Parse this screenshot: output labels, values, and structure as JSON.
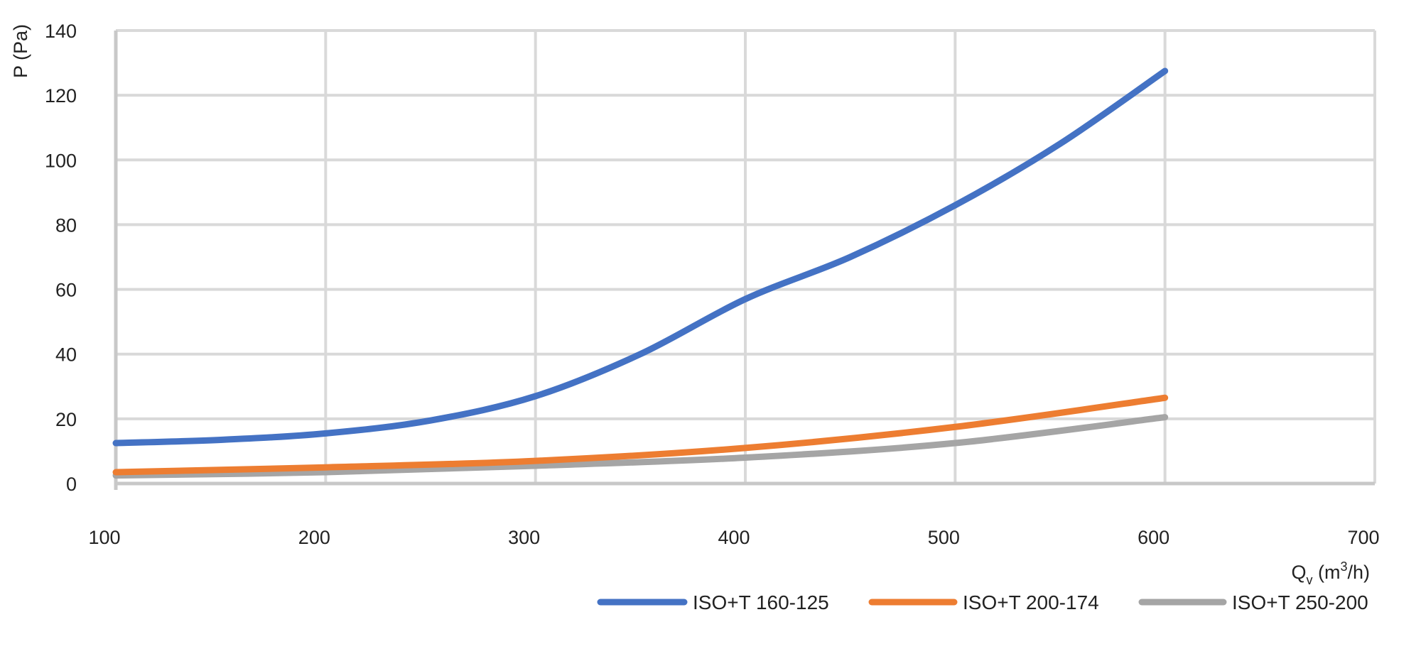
{
  "chart_data": {
    "type": "line",
    "title": "",
    "ylabel": "P (Pa)",
    "xlabel": {
      "base": "Q",
      "sub": "v",
      "pre": " (m",
      "sup": "3",
      "post": "/h)"
    },
    "xlim": [
      100,
      700
    ],
    "ylim": [
      0,
      140
    ],
    "x_ticks": [
      "100",
      "200",
      "300",
      "400",
      "500",
      "600",
      "700"
    ],
    "y_ticks": [
      "0",
      "20",
      "40",
      "60",
      "80",
      "100",
      "120",
      "140"
    ],
    "grid": true,
    "legend_position": "bottom-right",
    "series": [
      {
        "name": "ISO+T 160-125",
        "color": "#4472c4",
        "points": [
          [
            100,
            12.5
          ],
          [
            150,
            13.5
          ],
          [
            200,
            15.5
          ],
          [
            250,
            19.5
          ],
          [
            300,
            27
          ],
          [
            350,
            40
          ],
          [
            400,
            57
          ],
          [
            450,
            70
          ],
          [
            500,
            86
          ],
          [
            550,
            105
          ],
          [
            600,
            127.5
          ]
        ]
      },
      {
        "name": "ISO+T 200-174",
        "color": "#ed7d31",
        "points": [
          [
            100,
            3.5
          ],
          [
            200,
            5
          ],
          [
            300,
            7
          ],
          [
            400,
            11
          ],
          [
            500,
            17.5
          ],
          [
            600,
            26.5
          ]
        ]
      },
      {
        "name": "ISO+T 250-200",
        "color": "#a5a5a5",
        "points": [
          [
            100,
            2.5
          ],
          [
            200,
            3.5
          ],
          [
            300,
            5.5
          ],
          [
            400,
            8
          ],
          [
            500,
            12.5
          ],
          [
            600,
            20.5
          ]
        ]
      }
    ]
  }
}
